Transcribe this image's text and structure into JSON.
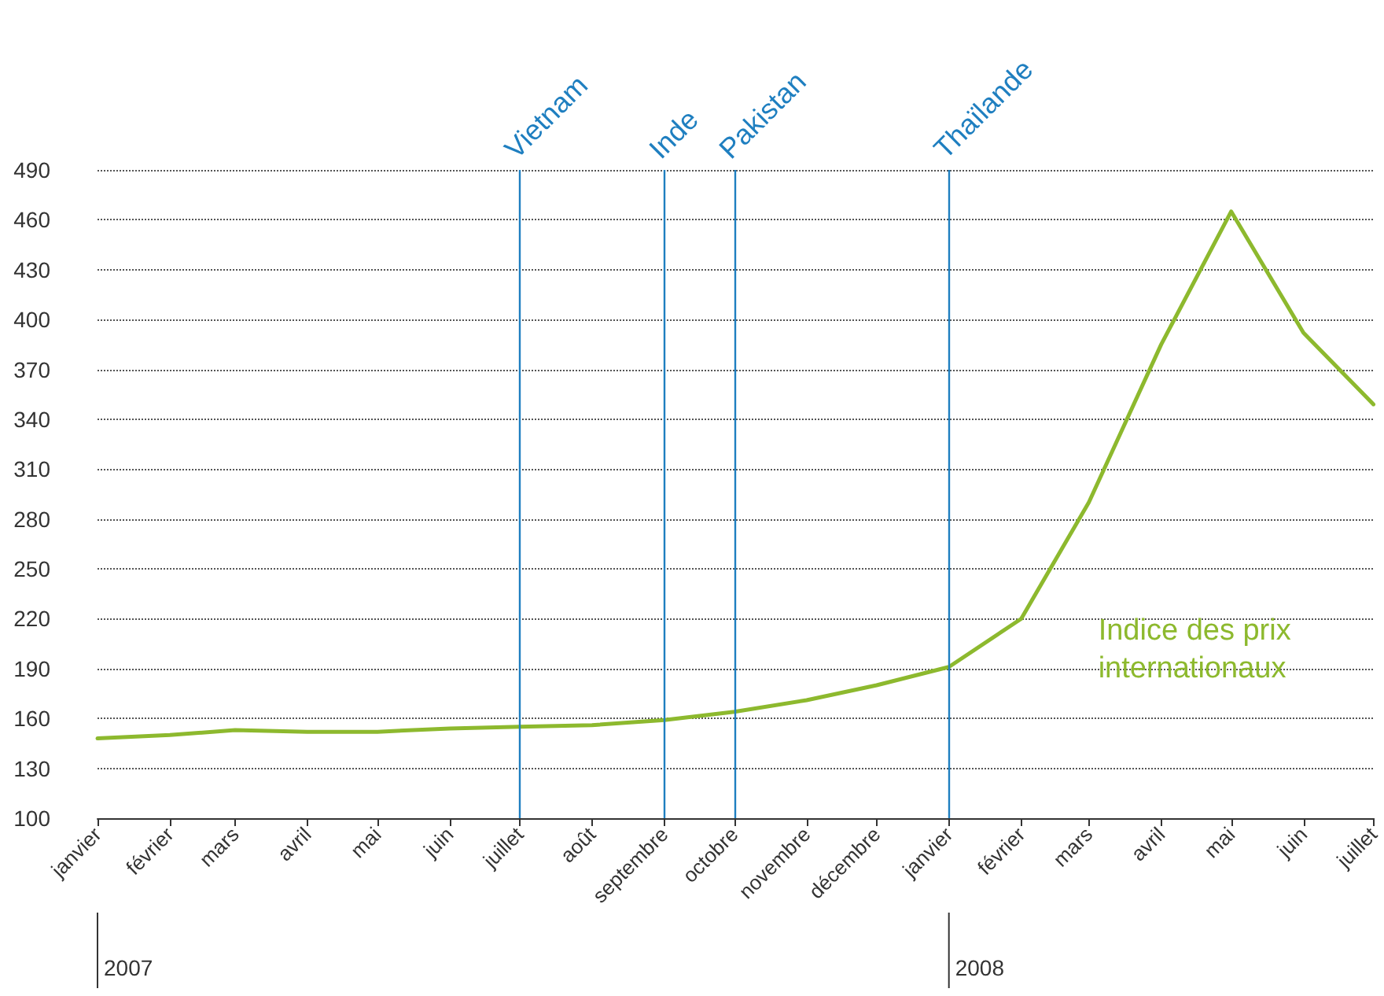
{
  "chart_data": {
    "type": "line",
    "x": [
      "2007-01",
      "2007-02",
      "2007-03",
      "2007-04",
      "2007-05",
      "2007-06",
      "2007-07",
      "2007-08",
      "2007-09",
      "2007-10",
      "2007-11",
      "2007-12",
      "2008-01",
      "2008-02",
      "2008-03",
      "2008-04",
      "2008-05",
      "2008-06",
      "2008-07"
    ],
    "xticks": [
      {
        "value": "2007-01",
        "label": "janvier"
      },
      {
        "value": "2007-02",
        "label": "février"
      },
      {
        "value": "2007-03",
        "label": "mars"
      },
      {
        "value": "2007-04",
        "label": "avril"
      },
      {
        "value": "2007-05",
        "label": "mai"
      },
      {
        "value": "2007-06",
        "label": "juin"
      },
      {
        "value": "2007-07",
        "label": "juillet"
      },
      {
        "value": "2007-08",
        "label": "août"
      },
      {
        "value": "2007-09",
        "label": "septembre"
      },
      {
        "value": "2007-10",
        "label": "octobre"
      },
      {
        "value": "2007-11",
        "label": "novembre"
      },
      {
        "value": "2007-12",
        "label": "décembre"
      },
      {
        "value": "2008-01",
        "label": "janvier"
      },
      {
        "value": "2008-02",
        "label": "février"
      },
      {
        "value": "2008-03",
        "label": "mars"
      },
      {
        "value": "2008-04",
        "label": "avril"
      },
      {
        "value": "2008-05",
        "label": "mai"
      },
      {
        "value": "2008-06",
        "label": "juin"
      },
      {
        "value": "2008-07",
        "label": "juillet"
      }
    ],
    "series": [
      {
        "name": "Indice des prix internationaux",
        "color": "#8db92e",
        "values": [
          148,
          150,
          153,
          152,
          152,
          154,
          155,
          156,
          159,
          164,
          171,
          180,
          191,
          220,
          290,
          385,
          465,
          392,
          349
        ]
      }
    ],
    "ylim": [
      100,
      490
    ],
    "yticks": [
      100,
      130,
      160,
      190,
      220,
      250,
      280,
      310,
      340,
      370,
      400,
      430,
      460,
      490
    ],
    "grid": "y",
    "legend": false,
    "marker": "none",
    "line_style": "solid",
    "ref_lines": [
      {
        "axis": "x",
        "value": "2007-07",
        "label": "Vietnam",
        "color": "#1f7fc0"
      },
      {
        "axis": "x",
        "value": "2007-09",
        "label": "Inde",
        "color": "#1f7fc0"
      },
      {
        "axis": "x",
        "value": "2007-10",
        "label": "Pakistan",
        "color": "#1f7fc0"
      },
      {
        "axis": "x",
        "value": "2008-01",
        "label": "Thaïlande",
        "color": "#1f7fc0"
      }
    ],
    "xlim": [
      "2007-01",
      "2008-07"
    ],
    "annotations": [
      "2007",
      "2008"
    ]
  }
}
